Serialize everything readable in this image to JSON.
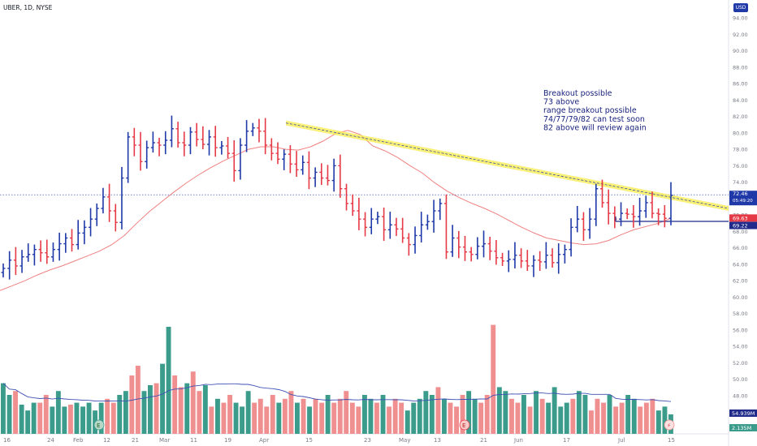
{
  "symbol_title": "UBER, 1D, NYSE",
  "currency": "USD",
  "colors": {
    "up": "#1f39a8",
    "down": "#e63946",
    "ma": "#f08080",
    "trendline": "#f5eb4a",
    "vol_up": "#3c9c8c",
    "vol_down": "#f08f8f",
    "vol_ma": "#3f51b5",
    "support": "#1f2a8a"
  },
  "annotation": [
    "Breakout possible",
    "73 above",
    "range breakout possible",
    "74/77/79/82 can test soon",
    "82 above will review again"
  ],
  "price_tags": {
    "last": "72.46",
    "countdown": "05:49:20",
    "ma_value": "69.63",
    "support_value": "69.22",
    "volume_value": "54.939M",
    "volume_ma_value": "2.135M"
  },
  "chart_data": {
    "type": "ohlc",
    "y_axis_ticks": [
      "94.00",
      "92.00",
      "90.00",
      "88.00",
      "86.00",
      "84.00",
      "82.00",
      "80.00",
      "78.00",
      "76.00",
      "74.00",
      "72.00",
      "70.00",
      "68.00",
      "66.00",
      "64.00",
      "62.00",
      "60.00",
      "58.00",
      "56.00",
      "54.00",
      "52.00",
      "50.00",
      "48.00"
    ],
    "price_range": [
      58,
      95
    ],
    "x_axis_labels": [
      "16",
      "24",
      "Feb",
      "12",
      "21",
      "Mar",
      "11",
      "19",
      "Apr",
      "15",
      "23",
      "May",
      "13",
      "21",
      "Jun",
      "17",
      "Jul",
      "15"
    ],
    "closes": [
      63.5,
      64.5,
      63.8,
      64.9,
      65.2,
      65.8,
      65.4,
      64.9,
      65.8,
      66.5,
      67.2,
      66.4,
      67.8,
      68.5,
      69.5,
      70.8,
      72.2,
      70.5,
      69.1,
      74.5,
      79.5,
      78.5,
      76.5,
      78.2,
      78.8,
      78.5,
      79.1,
      80.5,
      78.8,
      78.5,
      80.1,
      79.2,
      78.6,
      79.5,
      78.2,
      78.4,
      77.5,
      75.4,
      78.5,
      80.2,
      80.6,
      80.2,
      78.5,
      77.5,
      76.8,
      77.4,
      76.2,
      75.5,
      76.4,
      74.5,
      75.2,
      74.5,
      74.2,
      76.0,
      73.2,
      71.4,
      70.5,
      69.5,
      68.5,
      69.5,
      69.8,
      68.2,
      68.8,
      68.3,
      67.2,
      66.4,
      67.5,
      68.8,
      69.2,
      70.5,
      71.4,
      65.5,
      67.2,
      66.1,
      65.5,
      65.2,
      66.2,
      66.5,
      65.6,
      64.8,
      64.4,
      64.6,
      65.1,
      64.4,
      63.8,
      64.5,
      64.3,
      65.1,
      64.2,
      65.2,
      65.8,
      68.5,
      69.5,
      68.2,
      69.5,
      73.2,
      71.5,
      70.2,
      69.5,
      70.2,
      70.1,
      69.8,
      70.5,
      71.5,
      70.2,
      70.1,
      69.6,
      72.4
    ],
    "ma": [
      60.8,
      61.4,
      62.0,
      62.7,
      63.3,
      63.8,
      64.4,
      65.0,
      65.6,
      66.4,
      67.5,
      69.0,
      70.4,
      71.6,
      72.8,
      73.9,
      74.9,
      75.8,
      76.6,
      77.3,
      78.0,
      78.3,
      78.3,
      78.0,
      77.9,
      78.3,
      79.0,
      79.9,
      80.3,
      79.8,
      78.4,
      77.8,
      77.0,
      76.0,
      75.1,
      73.9,
      72.9,
      72.1,
      71.4,
      70.8,
      70.1,
      69.3,
      68.5,
      67.8,
      67.2,
      66.9,
      66.6,
      66.4,
      66.5,
      66.9,
      67.6,
      68.2,
      68.6,
      69.0,
      69.6
    ],
    "volume": [
      26,
      20,
      22,
      15,
      12,
      16,
      16,
      20,
      14,
      22,
      14,
      15,
      16,
      14,
      16,
      12,
      16,
      18,
      16,
      20,
      22,
      30,
      35,
      22,
      25,
      26,
      36,
      55,
      30,
      24,
      26,
      32,
      22,
      25,
      14,
      18,
      16,
      20,
      16,
      14,
      22,
      16,
      18,
      14,
      20,
      16,
      18,
      22,
      16,
      18,
      14,
      18,
      16,
      20,
      16,
      18,
      22,
      16,
      14,
      20,
      18,
      16,
      20,
      14,
      18,
      16,
      12,
      16,
      18,
      22,
      20,
      24,
      18,
      16,
      14,
      20,
      22,
      18,
      16,
      20,
      56,
      24,
      22,
      18,
      16,
      20,
      14,
      22,
      18,
      16,
      24,
      14,
      16,
      18,
      22,
      20,
      12,
      18,
      16,
      20,
      14,
      16,
      20,
      18,
      14,
      16,
      18,
      12,
      14,
      10
    ],
    "volume_ma_label": "2.135M"
  }
}
